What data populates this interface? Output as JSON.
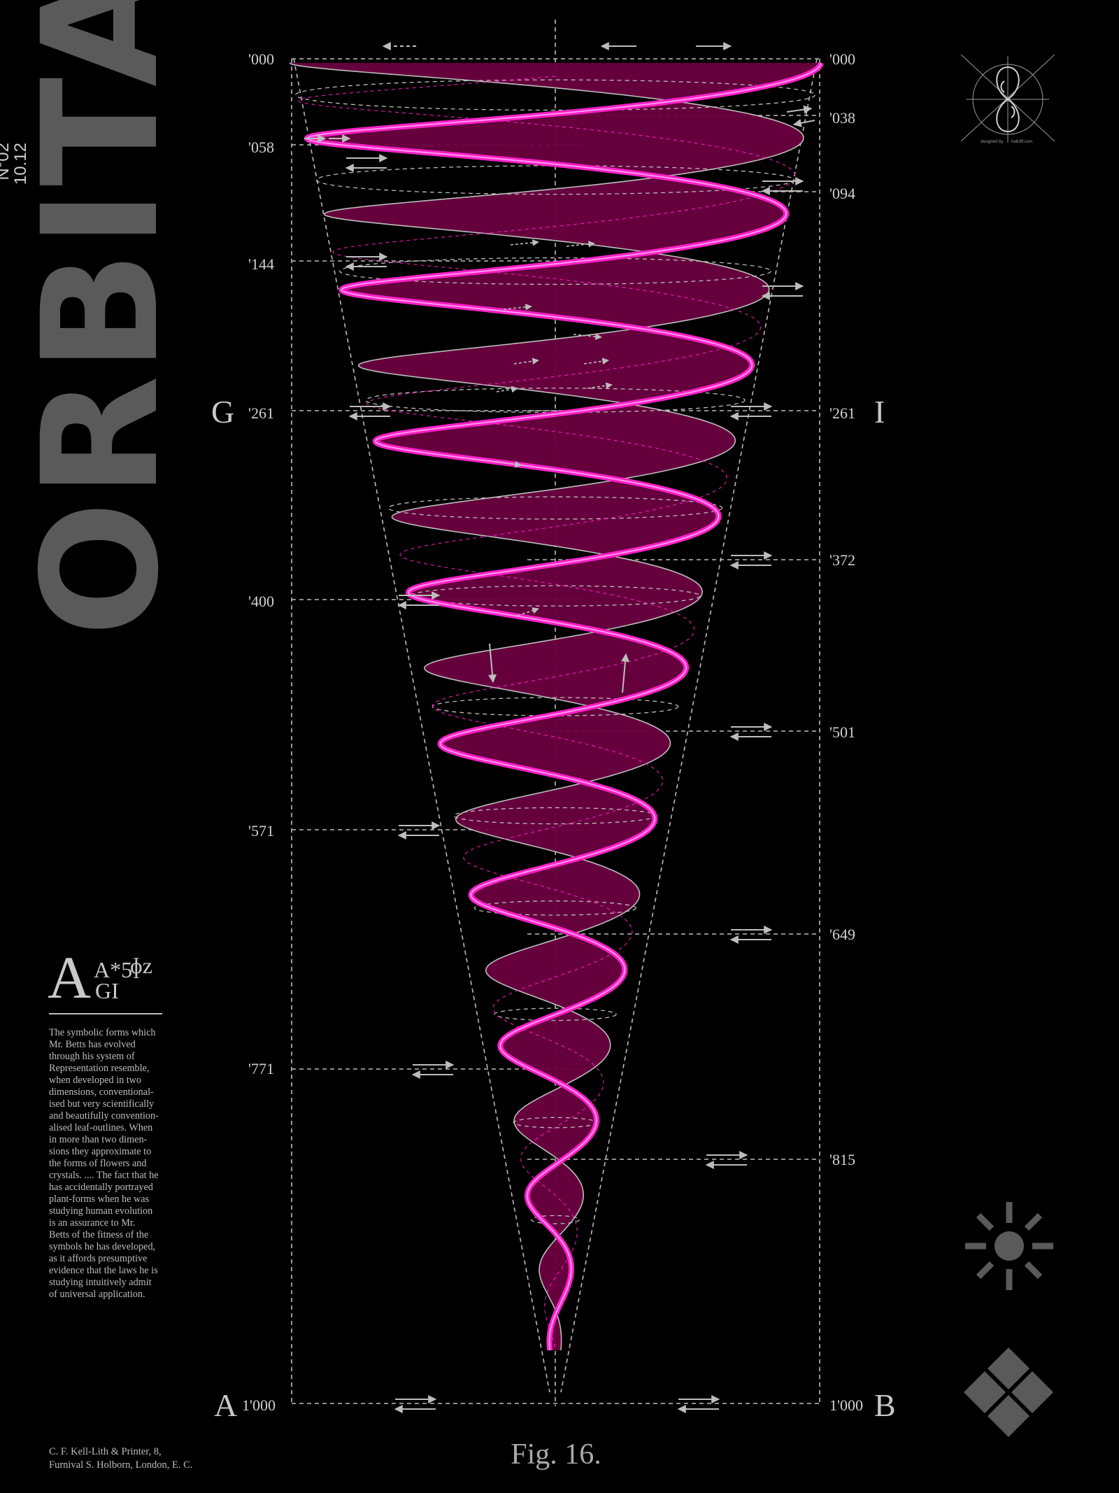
{
  "title": {
    "word": "ORBITA",
    "issue_number": "N°02",
    "issue_date": "10.12"
  },
  "axis_labels": {
    "left": [
      "'000",
      "'058",
      "'144",
      "'261",
      "'400",
      "'571",
      "'771"
    ],
    "right": [
      "'000",
      "'038",
      "'094",
      "'261",
      "'372",
      "'501",
      "'649",
      "'815"
    ],
    "bottom_left": "1'000",
    "bottom_right": "1'000"
  },
  "corner_letters": {
    "g": "G",
    "i": "I",
    "a": "A",
    "b": "B"
  },
  "glyph": {
    "a": "A",
    "a5": "A*5",
    "phiz": "ɸz",
    "gi": "GI"
  },
  "body_text": [
    "The symbolic forms which",
    "Mr. Betts has evolved",
    "through his system of",
    "Representation resemble,",
    "when developed in two",
    "dimensions, conventional-",
    "ised but very scientifically",
    "and beautifully convention-",
    "alised leaf-outlines. When",
    "in more than two dimen-",
    "sions they approximate to",
    "the forms of flowers and",
    "crystals. .... The fact that he",
    "has accidentally portrayed",
    "plant-forms when he was",
    "studying human evolution",
    "is an assurance to Mr.",
    "Betts of the fitness of the",
    "symbols he has developed,",
    "as it affords presumptive",
    "evidence that the laws he is",
    "studying intuitively admit",
    "of universal application."
  ],
  "printer": [
    "C. F. Kell-Lith & Printer, 8,",
    "Furnival S. Holborn, London, E. C."
  ],
  "figure_caption": "Fig. 16.",
  "logo": {
    "credit_left": "designed by",
    "credit_right": "halloffl.com"
  },
  "icons": [
    "orbit-logo-icon",
    "sun-icon",
    "diamonds-icon"
  ],
  "colors": {
    "background": "#000000",
    "accent_magenta": "#ff1ec8",
    "fill_wine": "#6a0040",
    "line_gray": "#bdbdbd",
    "title_gray": "#5a5a5a"
  }
}
